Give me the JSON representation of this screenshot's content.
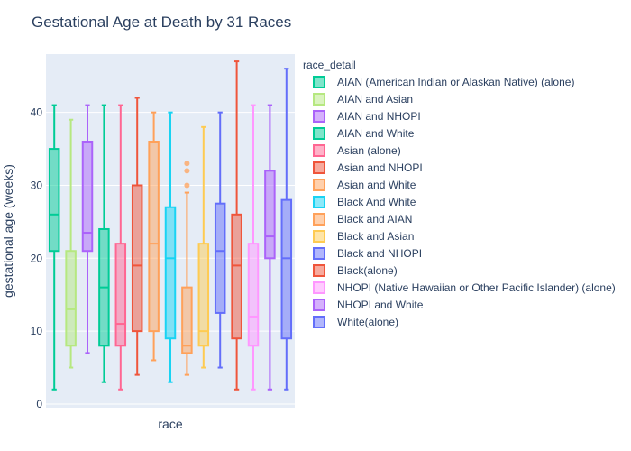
{
  "chart_data": {
    "type": "box",
    "title": "Gestational Age at Death by 31 Races",
    "xlabel": "race",
    "ylabel": "gestational age (weeks)",
    "ylim": [
      -0.5,
      48
    ],
    "yticks": [
      0,
      10,
      20,
      30,
      40
    ],
    "grid": true,
    "legend": {
      "title": "race_detail",
      "position": "right"
    },
    "series": [
      {
        "name": "AIAN (American Indian or Alaskan Native) (alone)",
        "color": "#00cc96",
        "min": 2,
        "q1": 21,
        "median": 26,
        "q3": 35,
        "max": 41,
        "outliers": []
      },
      {
        "name": "AIAN and Asian",
        "color": "#b6e880",
        "min": 5,
        "q1": 8,
        "median": 13,
        "q3": 21,
        "max": 39,
        "outliers": []
      },
      {
        "name": "AIAN and NHOPI",
        "color": "#ab63fa",
        "min": 7,
        "q1": 21,
        "median": 23.5,
        "q3": 36,
        "max": 41,
        "outliers": []
      },
      {
        "name": "AIAN and White",
        "color": "#00cc96",
        "min": 3,
        "q1": 8,
        "median": 16,
        "q3": 24,
        "max": 41,
        "outliers": []
      },
      {
        "name": "Asian (alone)",
        "color": "#ff6692",
        "min": 2,
        "q1": 8,
        "median": 11,
        "q3": 22,
        "max": 41,
        "outliers": []
      },
      {
        "name": "Asian and NHOPI",
        "color": "#ef553b",
        "min": 4,
        "q1": 10,
        "median": 19,
        "q3": 30,
        "max": 42,
        "outliers": []
      },
      {
        "name": "Asian and White",
        "color": "#ffa15a",
        "min": 6,
        "q1": 10,
        "median": 22,
        "q3": 36,
        "max": 40,
        "outliers": []
      },
      {
        "name": "Black And White",
        "color": "#19d3f3",
        "min": 3,
        "q1": 9,
        "median": 20,
        "q3": 27,
        "max": 40,
        "outliers": []
      },
      {
        "name": "Black and AIAN",
        "color": "#ffa15a",
        "min": 4,
        "q1": 7,
        "median": 8,
        "q3": 16,
        "max": 29,
        "outliers": [
          30,
          32,
          33
        ]
      },
      {
        "name": "Black and Asian",
        "color": "#fecb52",
        "min": 5,
        "q1": 8,
        "median": 10,
        "q3": 22,
        "max": 38,
        "outliers": []
      },
      {
        "name": "Black and NHOPI",
        "color": "#636efa",
        "min": 5,
        "q1": 12.5,
        "median": 21,
        "q3": 27.5,
        "max": 40,
        "outliers": []
      },
      {
        "name": "Black(alone)",
        "color": "#ef553b",
        "min": 2,
        "q1": 9,
        "median": 19,
        "q3": 26,
        "max": 47,
        "outliers": []
      },
      {
        "name": "NHOPI (Native Hawaiian or Other Pacific Islander) (alone)",
        "color": "#ff97ff",
        "min": 2,
        "q1": 8,
        "median": 12,
        "q3": 22,
        "max": 41,
        "outliers": []
      },
      {
        "name": "NHOPI and White",
        "color": "#ab63fa",
        "min": 2,
        "q1": 20,
        "median": 23,
        "q3": 32,
        "max": 41,
        "outliers": []
      },
      {
        "name": "White(alone)",
        "color": "#636efa",
        "min": 2,
        "q1": 9,
        "median": 20,
        "q3": 28,
        "max": 46,
        "outliers": []
      }
    ]
  }
}
